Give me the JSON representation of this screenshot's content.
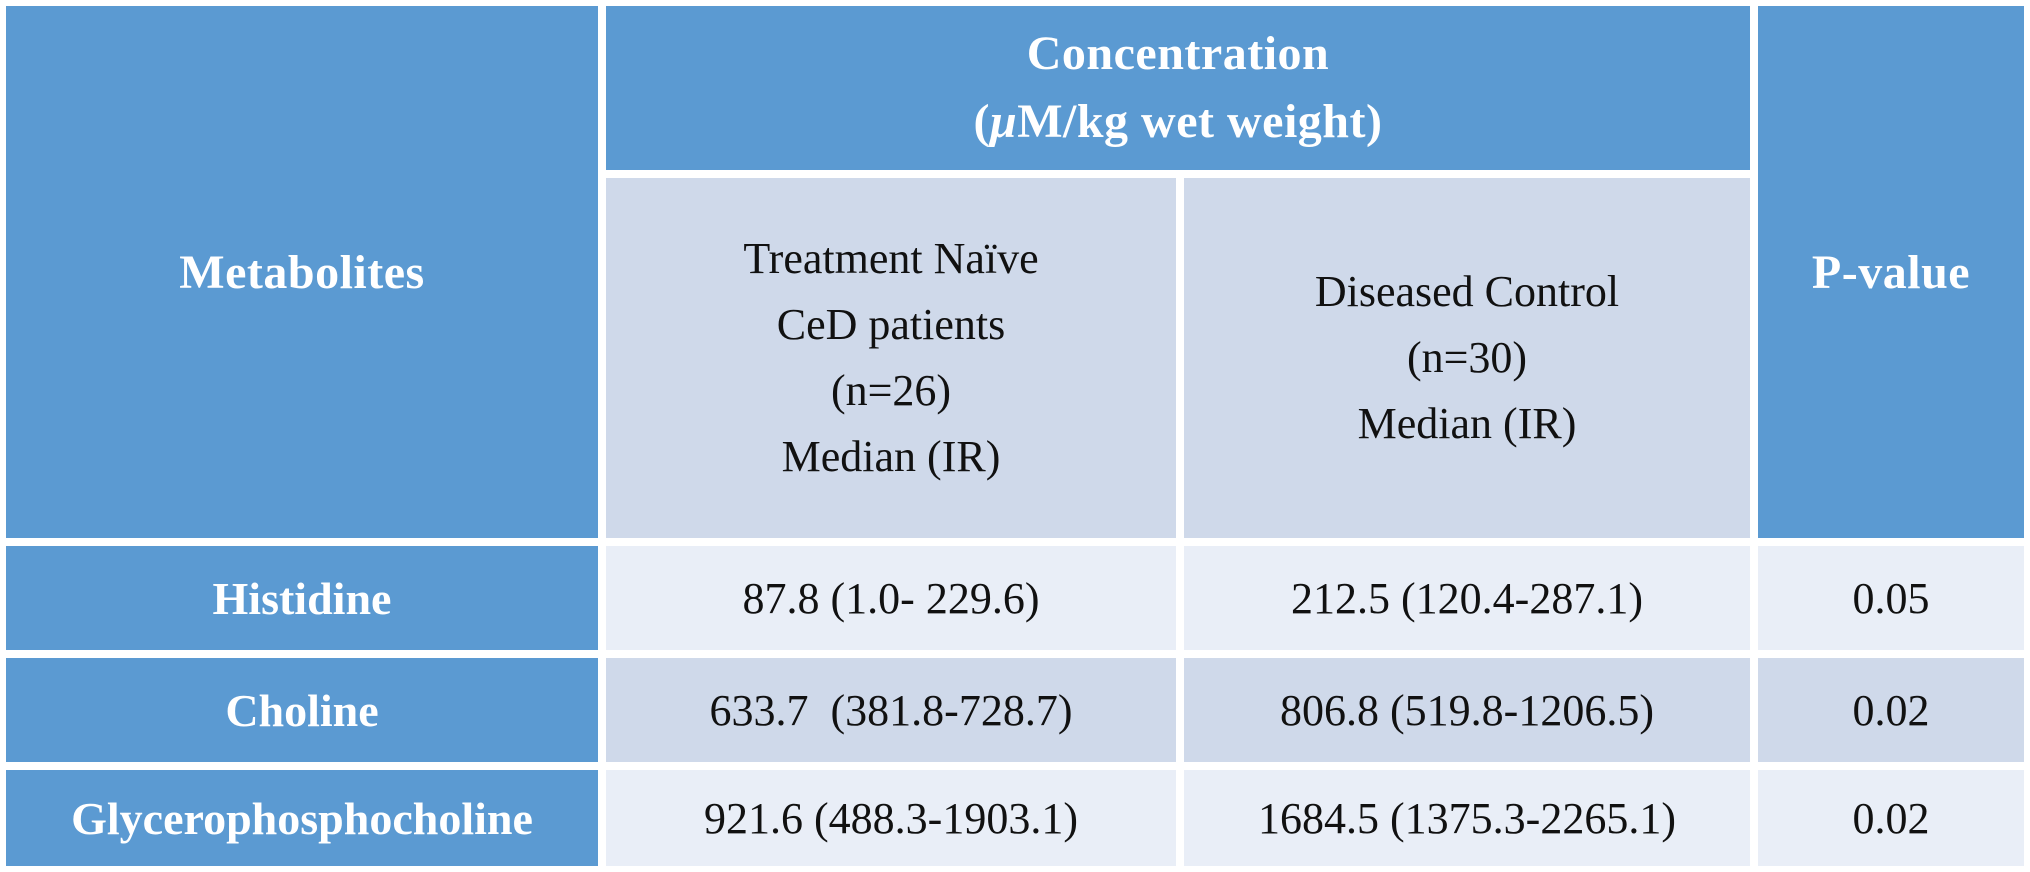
{
  "colors": {
    "header_blue": "#5b9ad2",
    "band_light_blue": "#cfd9ea",
    "row_light": "#e9eef7",
    "separator_white": "#ffffff",
    "header_text": "#ffffff",
    "body_text": "#111111"
  },
  "table": {
    "header": {
      "metabolites": "Metabolites",
      "concentration_title": "Concentration",
      "unit_open": "(",
      "unit_mu": "μ",
      "unit_rest": "M/kg wet weight)",
      "p_value": "P-value"
    },
    "subheaders": {
      "treatment_naive_lines": [
        "Treatment Naïve",
        "CeD patients",
        "(n=26)",
        "Median (IR)"
      ],
      "diseased_control_lines": [
        "Diseased Control",
        "(n=30)",
        "Median (IR)"
      ]
    },
    "rows": [
      {
        "metabolite": "Histidine",
        "treatment_naive": "87.8 (1.0- 229.6)",
        "diseased_control": "212.5 (120.4-287.1)",
        "p_value": "0.05"
      },
      {
        "metabolite": "Choline",
        "treatment_naive": "633.7  (381.8-728.7)",
        "diseased_control": "806.8 (519.8-1206.5)",
        "p_value": "0.02"
      },
      {
        "metabolite": "Glycerophosphocholine",
        "treatment_naive": "921.6 (488.3-1903.1)",
        "diseased_control": "1684.5 (1375.3-2265.1)",
        "p_value": "0.02"
      }
    ]
  },
  "chart_data": {
    "type": "table",
    "columns": [
      "Metabolites",
      "Concentration (μM/kg wet weight) — Treatment Naïve CeD patients (n=26) Median (IR)",
      "Concentration (μM/kg wet weight) — Diseased Control (n=30) Median (IR)",
      "P-value"
    ],
    "rows": [
      [
        "Histidine",
        "87.8 (1.0- 229.6)",
        "212.5 (120.4-287.1)",
        "0.05"
      ],
      [
        "Choline",
        "633.7 (381.8-728.7)",
        "806.8 (519.8-1206.5)",
        "0.02"
      ],
      [
        "Glycerophosphocholine",
        "921.6 (488.3-1903.1)",
        "1684.5 (1375.3-2265.1)",
        "0.02"
      ]
    ]
  }
}
